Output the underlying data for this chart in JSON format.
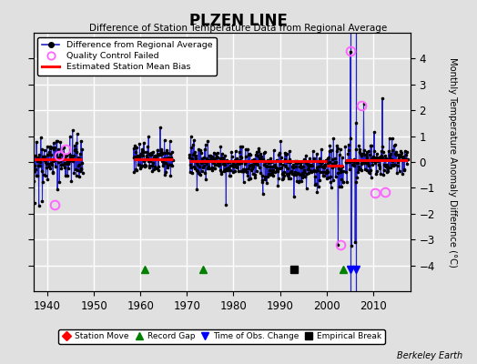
{
  "title": "PLZEN LINE",
  "subtitle": "Difference of Station Temperature Data from Regional Average",
  "ylabel": "Monthly Temperature Anomaly Difference (°C)",
  "xlabel_credit": "Berkeley Earth",
  "xlim": [
    1937,
    2018
  ],
  "ylim": [
    -5,
    5
  ],
  "yticks": [
    -4,
    -3,
    -2,
    -1,
    0,
    1,
    2,
    3,
    4
  ],
  "xticks": [
    1940,
    1950,
    1960,
    1970,
    1980,
    1990,
    2000,
    2010
  ],
  "bg_color": "#e0e0e0",
  "plot_bg_color": "#e0e0e0",
  "grid_color": "#ffffff",
  "line_color": "#2222cc",
  "dot_color": "black",
  "bias_color": "red",
  "qc_color": "#ff66ff",
  "segments": [
    {
      "start": 1936.0,
      "end": 1947.5,
      "bias": 0.12
    },
    {
      "start": 1958.5,
      "end": 1967.0,
      "bias": 0.12
    },
    {
      "start": 1970.5,
      "end": 2000.0,
      "bias": 0.04
    },
    {
      "start": 2000.0,
      "end": 2003.5,
      "bias": -0.15
    },
    {
      "start": 2004.0,
      "end": 2017.5,
      "bias": 0.08
    }
  ],
  "record_gaps": [
    1961.0,
    1973.5,
    2003.5
  ],
  "empirical_breaks": [
    1993.0
  ],
  "time_obs_changes": [
    2005.2,
    2006.3
  ],
  "station_moves": [],
  "qc_points": [
    {
      "t": 1941.5,
      "v": -1.65
    },
    {
      "t": 1942.5,
      "v": 0.25
    },
    {
      "t": 1944.0,
      "v": 0.5
    },
    {
      "t": 2003.0,
      "v": -3.2
    },
    {
      "t": 2005.2,
      "v": 4.3
    },
    {
      "t": 2007.5,
      "v": 2.2
    },
    {
      "t": 2010.5,
      "v": -1.2
    },
    {
      "t": 2012.5,
      "v": -1.15
    }
  ]
}
